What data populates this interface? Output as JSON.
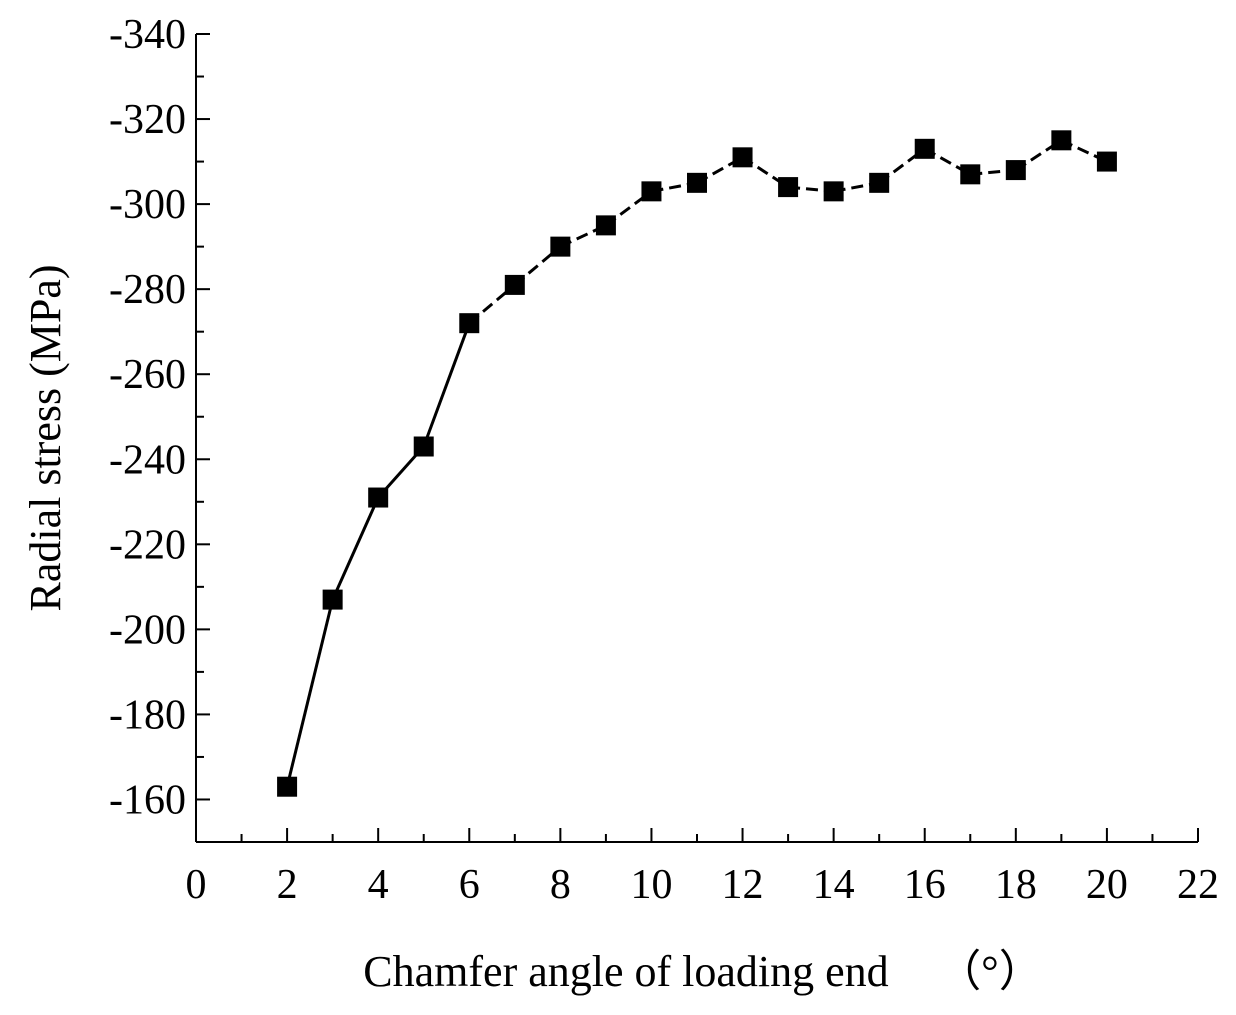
{
  "chart_data": {
    "type": "line",
    "title": "",
    "xlabel": "Chamfer angle of loading end",
    "xlabel_unit": "（°）",
    "ylabel": "Radial stress (MPa)",
    "xlim": [
      0,
      22
    ],
    "ylim": [
      -150,
      -340
    ],
    "y_inverted": true,
    "x_ticks": [
      0,
      2,
      4,
      6,
      8,
      10,
      12,
      14,
      16,
      18,
      20,
      22
    ],
    "x_tick_labels": [
      "0",
      "2",
      "4",
      "6",
      "8",
      "10",
      "12",
      "14",
      "16",
      "18",
      "20",
      "22"
    ],
    "y_ticks": [
      -160,
      -180,
      -200,
      -220,
      -240,
      -260,
      -280,
      -300,
      -320,
      -340
    ],
    "y_tick_labels": [
      "-160",
      "-180",
      "-200",
      "-220",
      "-240",
      "-260",
      "-280",
      "-300",
      "-320",
      "-340"
    ],
    "grid": false,
    "series": [
      {
        "name": "Radial stress",
        "marker": "square",
        "color": "#000000",
        "x": [
          2,
          3,
          4,
          5,
          6,
          7,
          8,
          9,
          10,
          11,
          12,
          13,
          14,
          15,
          16,
          17,
          18,
          19,
          20
        ],
        "values": [
          -163,
          -207,
          -231,
          -243,
          -272,
          -281,
          -290,
          -295,
          -303,
          -305,
          -311,
          -304,
          -303,
          -305,
          -313,
          -307,
          -308,
          -315,
          -310
        ]
      }
    ]
  }
}
